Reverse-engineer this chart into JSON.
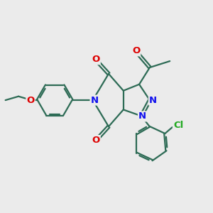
{
  "bg_color": "#ebebeb",
  "bond_color": "#2d6b55",
  "bond_width": 1.6,
  "atom_colors": {
    "N": "#1010ee",
    "O": "#dd0000",
    "Cl": "#22aa22",
    "C": "#2d6b55"
  },
  "font_size_atom": 9.5
}
